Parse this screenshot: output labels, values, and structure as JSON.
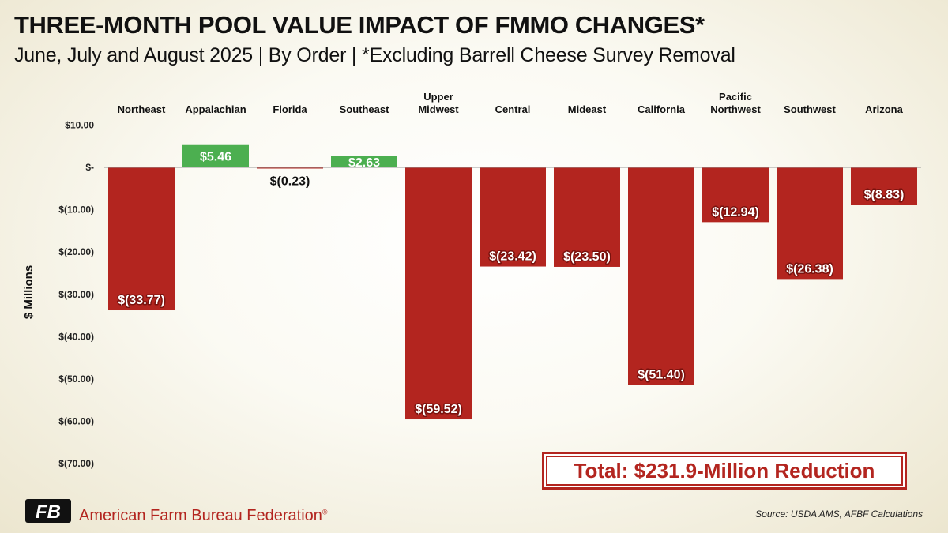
{
  "header": {
    "title": "THREE-MONTH POOL VALUE IMPACT OF FMMO CHANGES*",
    "subtitle": "June, July and August 2025 | By Order | *Excluding Barrell Cheese Survey Removal"
  },
  "chart_data": {
    "type": "bar",
    "title": "THREE-MONTH POOL VALUE IMPACT OF FMMO CHANGES*",
    "subtitle": "June, July and August 2025 | By Order | *Excluding Barrell Cheese Survey Removal",
    "ylabel": "$ Millions",
    "xlabel": "",
    "categories": [
      [
        "Northeast"
      ],
      [
        "Appalachian"
      ],
      [
        "Florida"
      ],
      [
        "Southeast"
      ],
      [
        "Upper",
        "Midwest"
      ],
      [
        "Central"
      ],
      [
        "Mideast"
      ],
      [
        "California"
      ],
      [
        "Pacific",
        "Northwest"
      ],
      [
        "Southwest"
      ],
      [
        "Arizona"
      ]
    ],
    "values": [
      -33.77,
      5.46,
      -0.23,
      2.63,
      -59.52,
      -23.42,
      -23.5,
      -51.4,
      -12.94,
      -26.38,
      -8.83
    ],
    "data_labels": [
      "$(33.77)",
      "$5.46",
      "$(0.23)",
      "$2.63",
      "$(59.52)",
      "$(23.42)",
      "$(23.50)",
      "$(51.40)",
      "$(12.94)",
      "$(26.38)",
      "$(8.83)"
    ],
    "yticks": [
      10,
      0,
      -10,
      -20,
      -30,
      -40,
      -50,
      -60,
      -70
    ],
    "ytick_labels": [
      "$10.00",
      "$-",
      "$(10.00)",
      "$(20.00)",
      "$(30.00)",
      "$(40.00)",
      "$(50.00)",
      "$(60.00)",
      "$(70.00)"
    ],
    "ylim": [
      -70,
      10
    ],
    "category_axis_position": "top",
    "colors": {
      "positive": "#4caf50",
      "negative": "#b3251f"
    }
  },
  "annotation": {
    "total": "Total: $231.9-Million Reduction"
  },
  "footer": {
    "organization": "American Farm Bureau Federation",
    "registered_mark": "®",
    "logo_text": "FB",
    "source": "Source: USDA AMS, AFBF Calculations"
  }
}
